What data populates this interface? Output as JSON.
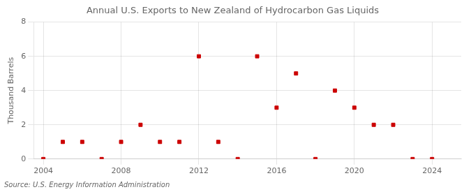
{
  "chart_data": {
    "type": "scatter",
    "title": "Annual U.S. Exports to New Zealand of Hydrocarbon Gas Liquids",
    "y_label": "Thousand Barrels",
    "source": "Source: U.S. Energy Information Administration",
    "x": [
      2004,
      2005,
      2006,
      2007,
      2008,
      2009,
      2010,
      2011,
      2012,
      2013,
      2014,
      2015,
      2016,
      2017,
      2018,
      2019,
      2020,
      2021,
      2022,
      2023,
      2024
    ],
    "values": [
      0,
      1,
      1,
      0,
      1,
      2,
      1,
      1,
      6,
      1,
      0,
      6,
      3,
      5,
      0,
      4,
      3,
      2,
      2,
      0,
      0
    ],
    "color": "#cc0000",
    "marker": "square",
    "xlim": [
      2003.5,
      2025.5
    ],
    "xticks": [
      2004,
      2008,
      2012,
      2016,
      2020,
      2024
    ],
    "ylim": [
      0,
      8
    ],
    "yticks": [
      0,
      2,
      4,
      6,
      8
    ],
    "grid": true
  }
}
